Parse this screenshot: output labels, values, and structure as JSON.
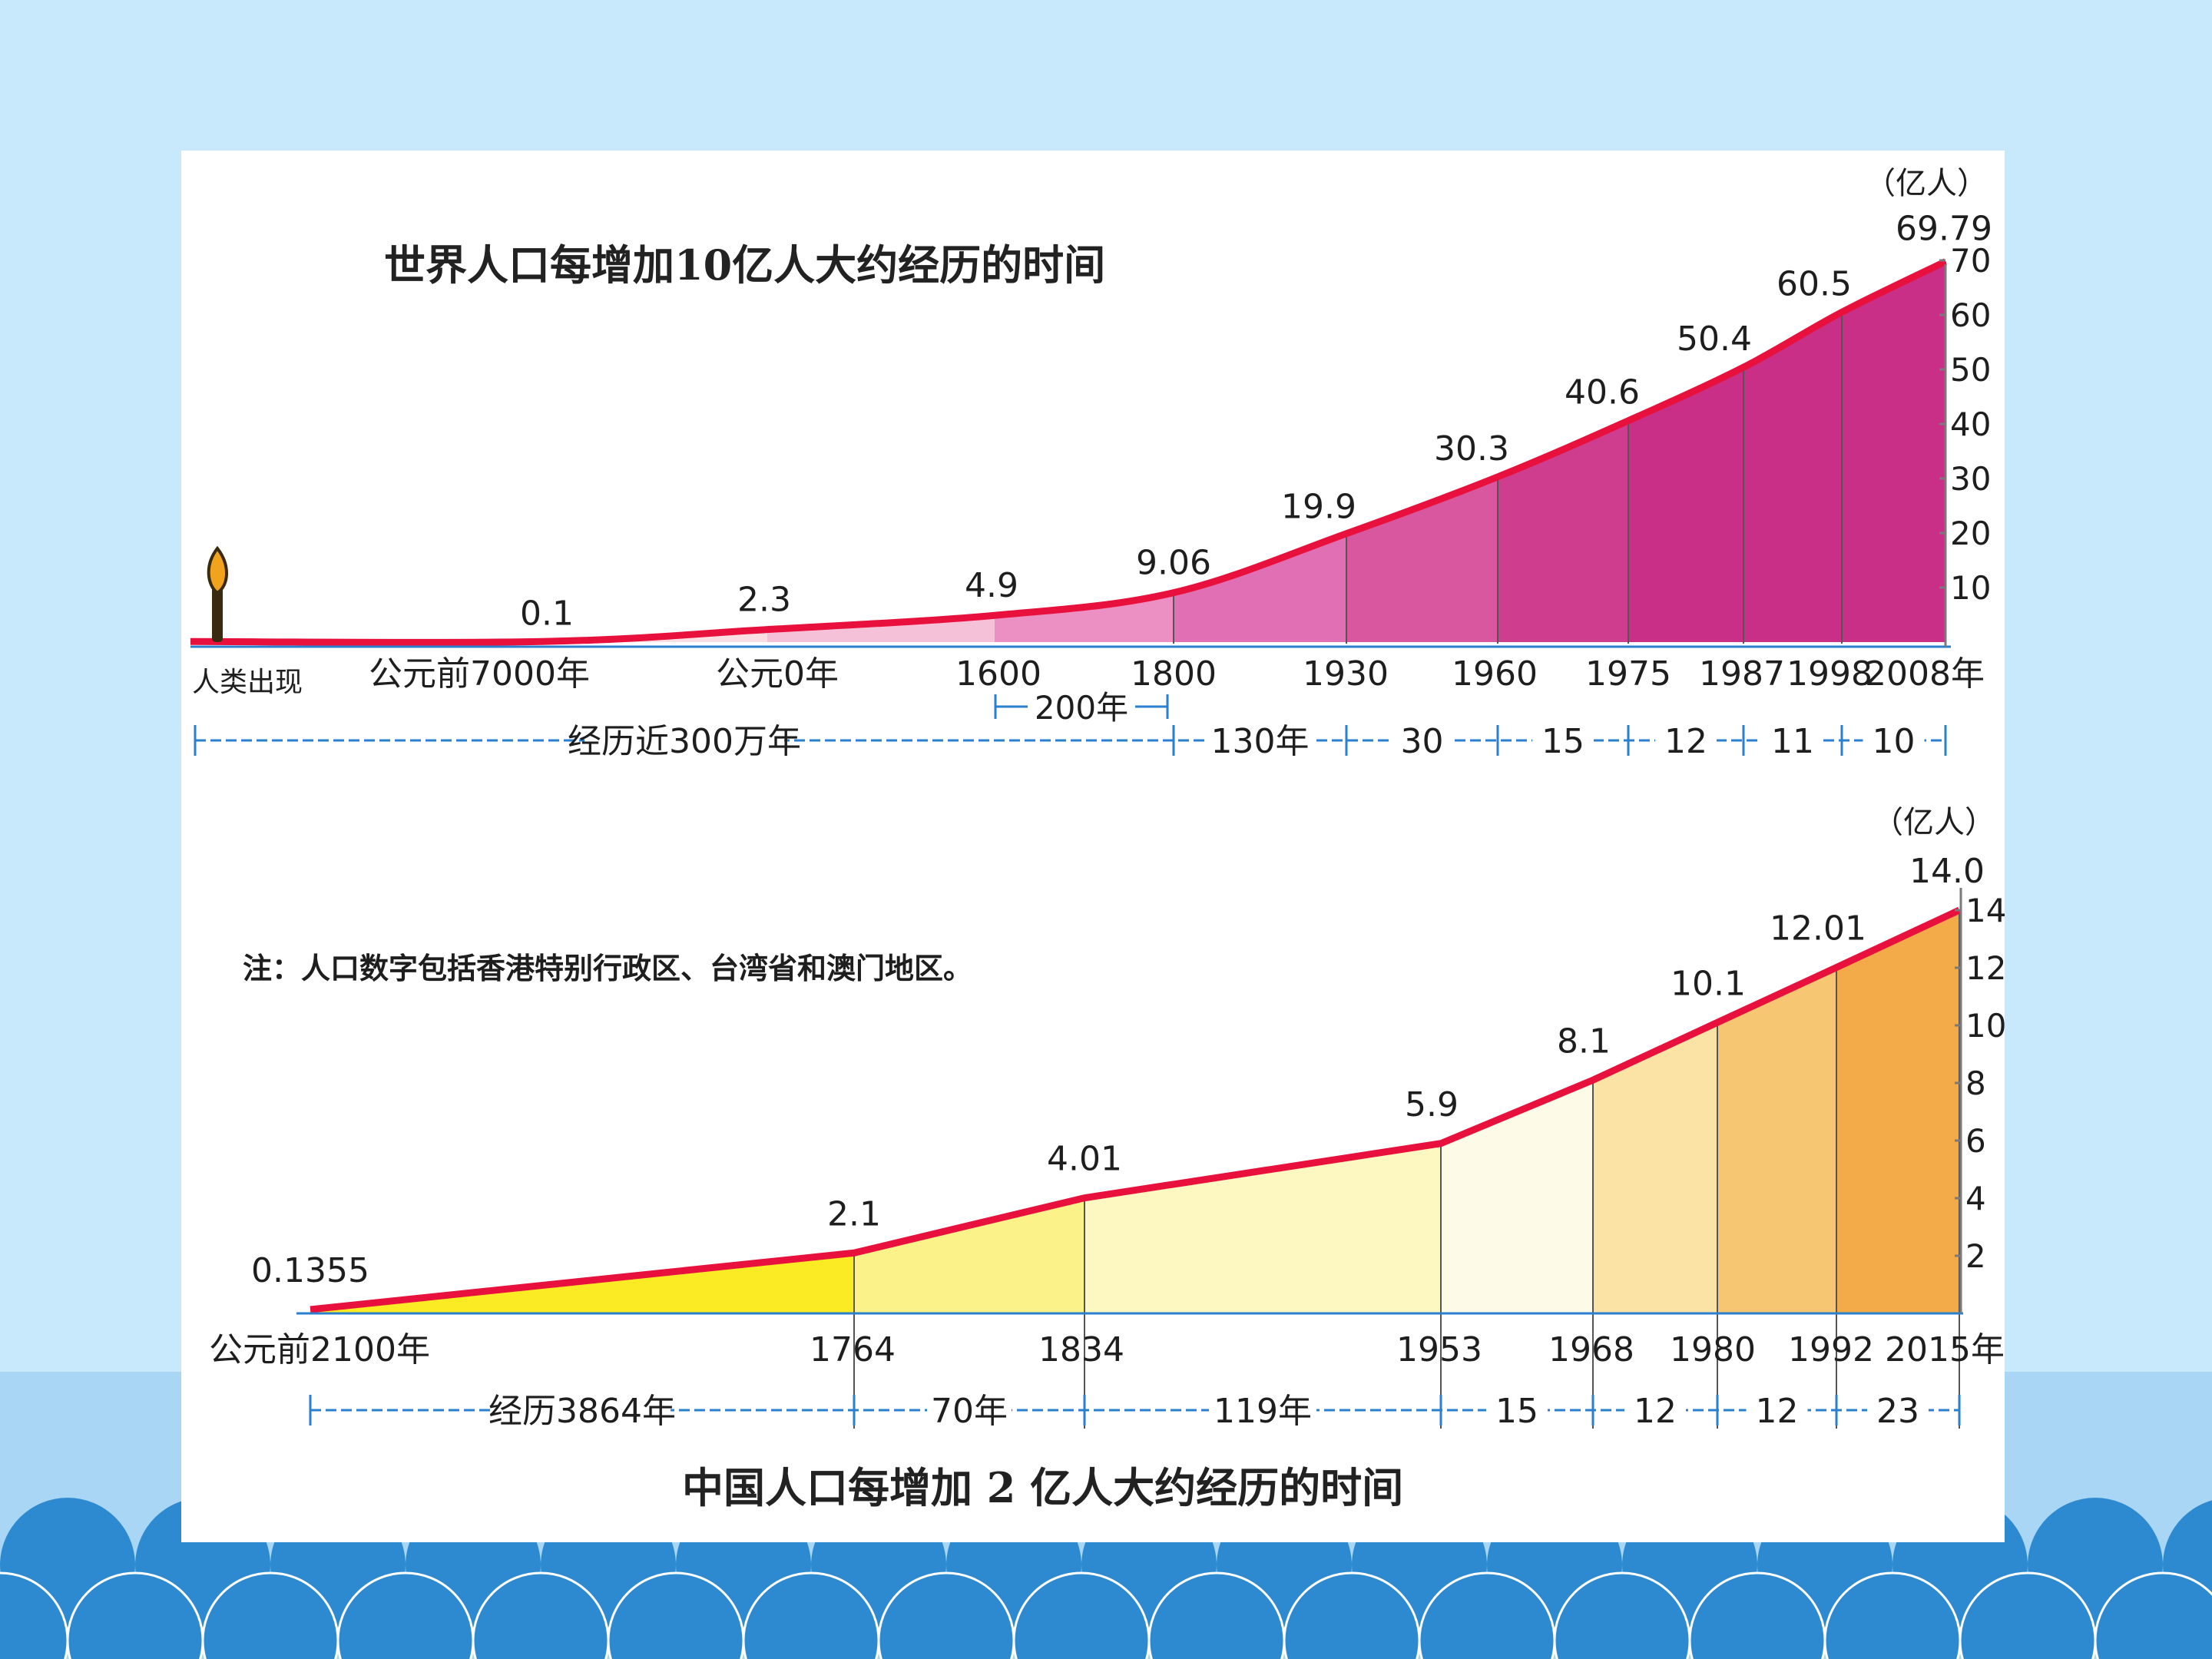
{
  "slide": {
    "background_color": "#c8e8fb",
    "wave_dark_color": "#2e8ad0",
    "wave_light_color": "#a9d6f5"
  },
  "chart_data": [
    {
      "type": "area",
      "title": "世界人口每增加10亿人大约经历的时间",
      "unit_label": "（亿人）",
      "origin_label": "人类出现",
      "x_labels": [
        "公元前7000年",
        "公元0年",
        "1600",
        "1800",
        "1930",
        "1960",
        "1975",
        "1987",
        "1998",
        "2008年"
      ],
      "values": [
        0.1,
        2.3,
        4.9,
        9.06,
        19.9,
        30.3,
        40.6,
        50.4,
        60.5,
        69.79
      ],
      "value_labels": [
        "0.1",
        "2.3",
        "4.9",
        "9.06",
        "19.9",
        "30.3",
        "40.6",
        "50.4",
        "60.5",
        "69.79"
      ],
      "y_ticks": [
        "10",
        "20",
        "30",
        "40",
        "50",
        "60",
        "70"
      ],
      "ylim": [
        0,
        70
      ],
      "intervals": [
        "经历近300万年",
        "130年",
        "30",
        "15",
        "12",
        "11",
        "10"
      ],
      "interval_sub": "200年",
      "line_color": "#e8103c",
      "fill_colors": [
        "#f6c0a8",
        "#f9dfe4",
        "#f4c1d9",
        "#ec8fc2",
        "#e070b3",
        "#d8579f",
        "#cf3d8e",
        "#c92f86"
      ]
    },
    {
      "type": "area",
      "title": "中国人口每增加 2 亿人大约经历的时间",
      "unit_label": "（亿人）",
      "note": "注：人口数字包括香港特别行政区、台湾省和澳门地区。",
      "x_labels": [
        "公元前2100年",
        "1764",
        "1834",
        "1953",
        "1968",
        "1980",
        "1992",
        "2015年"
      ],
      "values": [
        0.1355,
        2.1,
        4.01,
        5.9,
        8.1,
        10.1,
        12.01,
        14.0
      ],
      "value_labels": [
        "0.1355",
        "2.1",
        "4.01",
        "5.9",
        "8.1",
        "10.1",
        "12.01",
        "14.0"
      ],
      "y_ticks": [
        "2",
        "4",
        "6",
        "8",
        "10",
        "12",
        "14"
      ],
      "ylim": [
        0,
        14
      ],
      "intervals": [
        "经历3864年",
        "70年",
        "119年",
        "15",
        "12",
        "12",
        "23"
      ],
      "line_color": "#e8103c",
      "fill_colors": [
        "#fbeb25",
        "#fbf28a",
        "#fdf7c2",
        "#fefae8",
        "#fbe3a6",
        "#f6c672",
        "#f2ab48",
        "#ef9530"
      ]
    }
  ]
}
